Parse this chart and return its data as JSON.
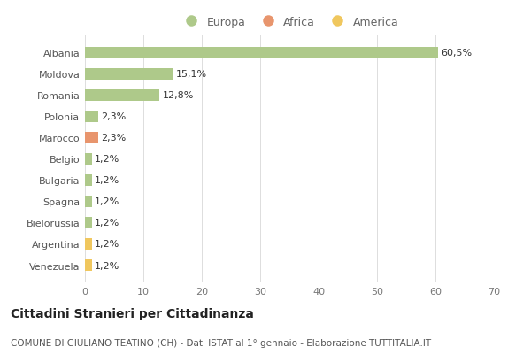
{
  "categories": [
    "Albania",
    "Moldova",
    "Romania",
    "Polonia",
    "Marocco",
    "Belgio",
    "Bulgaria",
    "Spagna",
    "Bielorussia",
    "Argentina",
    "Venezuela"
  ],
  "values": [
    60.5,
    15.1,
    12.8,
    2.3,
    2.3,
    1.2,
    1.2,
    1.2,
    1.2,
    1.2,
    1.2
  ],
  "labels": [
    "60,5%",
    "15,1%",
    "12,8%",
    "2,3%",
    "2,3%",
    "1,2%",
    "1,2%",
    "1,2%",
    "1,2%",
    "1,2%",
    "1,2%"
  ],
  "colors": [
    "#aec98a",
    "#aec98a",
    "#aec98a",
    "#aec98a",
    "#e8956d",
    "#aec98a",
    "#aec98a",
    "#aec98a",
    "#aec98a",
    "#f0c75e",
    "#f0c75e"
  ],
  "legend_labels": [
    "Europa",
    "Africa",
    "America"
  ],
  "legend_colors": [
    "#aec98a",
    "#e8956d",
    "#f0c75e"
  ],
  "title": "Cittadini Stranieri per Cittadinanza",
  "subtitle": "COMUNE DI GIULIANO TEATINO (CH) - Dati ISTAT al 1° gennaio - Elaborazione TUTTITALIA.IT",
  "xlim": [
    0,
    70
  ],
  "xticks": [
    0,
    10,
    20,
    30,
    40,
    50,
    60,
    70
  ],
  "background_color": "#ffffff",
  "bar_height": 0.55,
  "title_fontsize": 10,
  "subtitle_fontsize": 7.5,
  "tick_fontsize": 8,
  "label_fontsize": 8,
  "legend_fontsize": 9
}
